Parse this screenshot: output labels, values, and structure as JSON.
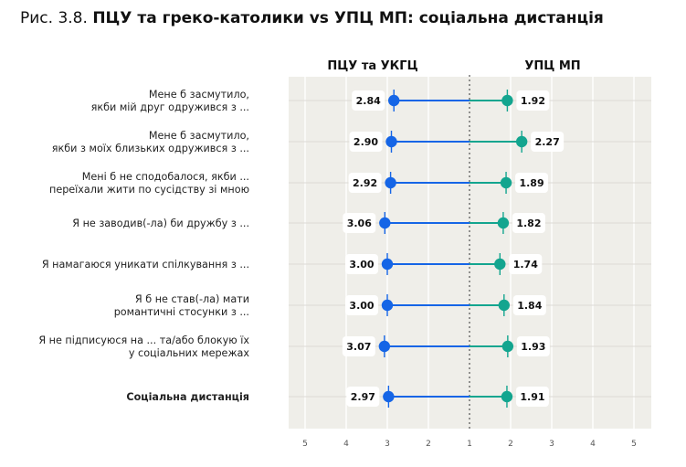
{
  "figure": {
    "prefix": "Рис. 3.8.",
    "title": "ПЦУ та греко-католики vs УПЦ МП: соціальна дистанція"
  },
  "chart_data": {
    "type": "dumbbell",
    "groups": [
      "ПЦУ та УКГЦ",
      "УПЦ МП"
    ],
    "rows": [
      {
        "label": [
          "Мене б засмутило,",
          "якби мій друг одружився з ..."
        ],
        "left": 2.84,
        "right": 1.92,
        "bold": false
      },
      {
        "label": [
          "Мене б засмутило,",
          "якби з моїх близьких одружився з ..."
        ],
        "left": 2.9,
        "right": 2.27,
        "bold": false
      },
      {
        "label": [
          "Мені б не сподобалося, якби ...",
          "переїхали жити по сусідству зі мною"
        ],
        "left": 2.92,
        "right": 1.89,
        "bold": false
      },
      {
        "label": [
          "Я не заводив(-ла) би дружбу з ..."
        ],
        "left": 3.06,
        "right": 1.82,
        "bold": false
      },
      {
        "label": [
          "Я намагаюся уникати спілкування з ..."
        ],
        "left": 3.0,
        "right": 1.74,
        "bold": false
      },
      {
        "label": [
          "Я б не став(-ла) мати",
          "романтичні стосунки з ..."
        ],
        "left": 3.0,
        "right": 1.84,
        "bold": false
      },
      {
        "label": [
          "Я не підписуюся на ... та/або блокую їх",
          "у соціальних мережах"
        ],
        "left": 3.07,
        "right": 1.93,
        "bold": false
      },
      {
        "label": [
          "Соціальна дистанція"
        ],
        "left": 2.97,
        "right": 1.91,
        "bold": true
      }
    ],
    "value_labels_left": [
      "2.84",
      "2.90",
      "2.92",
      "3.06",
      "3.00",
      "3.00",
      "3.07",
      "2.97"
    ],
    "value_labels_right": [
      "1.92",
      "2.27",
      "1.89",
      "1.82",
      "1.74",
      "1.84",
      "1.93",
      "1.91"
    ],
    "x_ticks": [
      "5",
      "4",
      "3",
      "2",
      "1",
      "2",
      "3",
      "4",
      "5"
    ],
    "x_range": [
      5,
      1,
      5
    ],
    "colors": {
      "left": "#1565e6",
      "right": "#13a58f",
      "panel": "#efeee9",
      "grid": "#dcdbd5"
    }
  }
}
